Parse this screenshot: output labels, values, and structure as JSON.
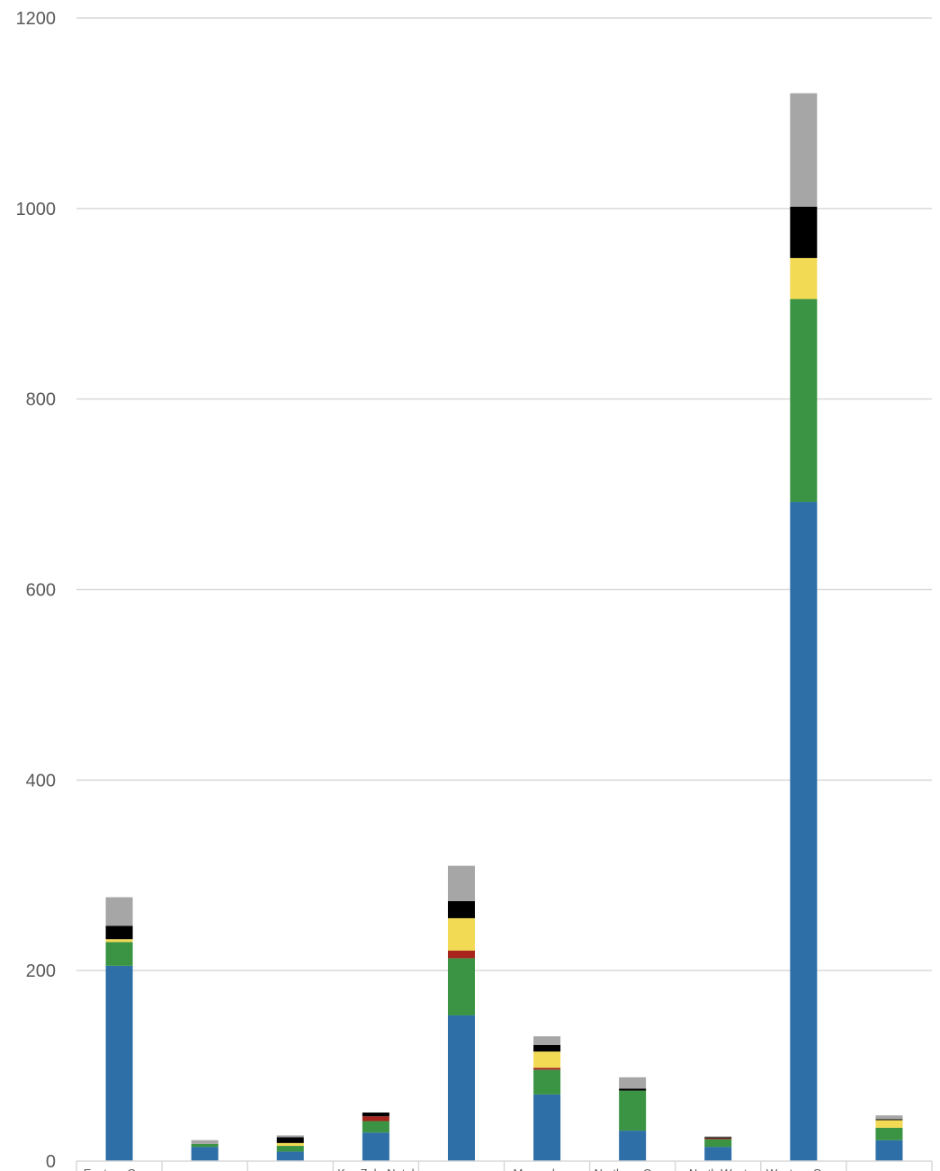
{
  "chart_data": {
    "type": "bar",
    "stacked": true,
    "categories": [
      "Eastern Cape",
      "",
      "",
      "KwaZulu-Natal",
      "",
      "Mpumalanga",
      "Northern Cape",
      "North West",
      "Western Cape",
      ""
    ],
    "series": [
      {
        "color": "#2e6fa7",
        "values": [
          205,
          15,
          10,
          30,
          153,
          70,
          32,
          15,
          692,
          22
        ]
      },
      {
        "color": "#3a9444",
        "values": [
          25,
          3,
          6,
          12,
          60,
          26,
          42,
          8,
          213,
          13
        ]
      },
      {
        "color": "#a8251e",
        "values": [
          0,
          0,
          0,
          5,
          8,
          2,
          0,
          1,
          0,
          0
        ]
      },
      {
        "color": "#f2da55",
        "values": [
          3,
          0,
          3,
          0,
          34,
          17,
          0,
          0,
          43,
          8
        ]
      },
      {
        "color": "#000000",
        "values": [
          14,
          0,
          6,
          4,
          18,
          7,
          2,
          1,
          54,
          1
        ]
      },
      {
        "color": "#a6a6a6",
        "values": [
          30,
          4,
          2,
          0,
          37,
          9,
          12,
          1,
          119,
          4
        ]
      }
    ],
    "ylim": [
      0,
      1200
    ],
    "yticks": [
      0,
      200,
      400,
      600,
      800,
      1000,
      1200
    ],
    "grid": true,
    "legend": "none"
  }
}
